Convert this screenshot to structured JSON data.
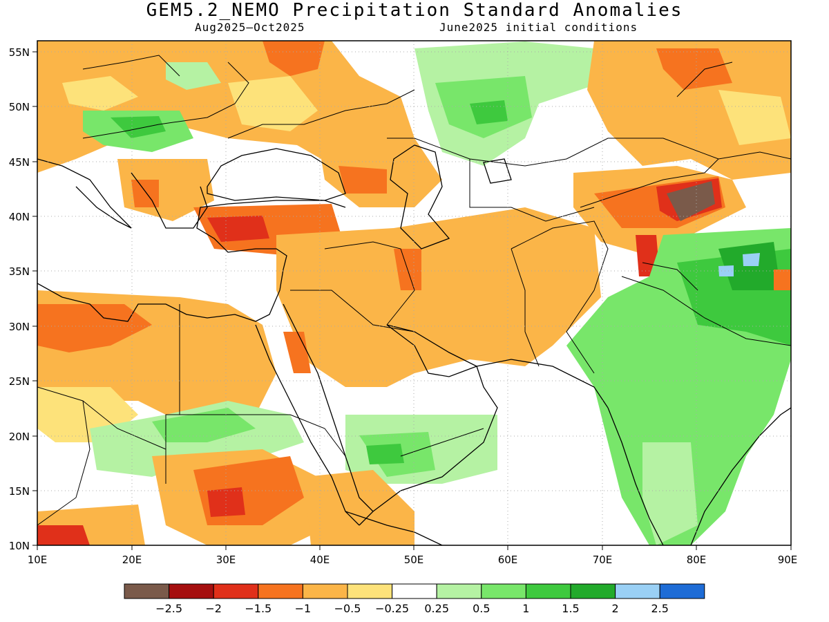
{
  "title": "GEM5.2_NEMO Precipitation Standard Anomalies",
  "period": "Aug2025–Oct2025",
  "initial_conditions": "June2025 initial conditions",
  "axes": {
    "lon_labels": [
      "10E",
      "20E",
      "30E",
      "40E",
      "50E",
      "60E",
      "70E",
      "80E",
      "90E"
    ],
    "lat_labels": [
      "10N",
      "15N",
      "20N",
      "25N",
      "30N",
      "35N",
      "40N",
      "45N",
      "50N",
      "55N"
    ],
    "lon_range": [
      10,
      90
    ],
    "lat_range": [
      10,
      56
    ],
    "grid": true
  },
  "colorbar": {
    "labels": [
      "−2.5",
      "−2",
      "−1.5",
      "−1",
      "−0.5",
      "−0.25",
      "0.25",
      "0.5",
      "1",
      "1.5",
      "2",
      "2.5"
    ],
    "colors": [
      "#7a5a4a",
      "#a50f0f",
      "#e0301a",
      "#f6731f",
      "#fbb548",
      "#fde27a",
      "#ffffff",
      "#b5f2a3",
      "#78e66a",
      "#3ec93e",
      "#22aa2b",
      "#9ad0f5",
      "#1e6cd6"
    ]
  },
  "palette": {
    "ocean": "#ffffff",
    "dry_neutral": "#ffffff",
    "coast": "#000000",
    "grid": "#aaaaaa"
  }
}
